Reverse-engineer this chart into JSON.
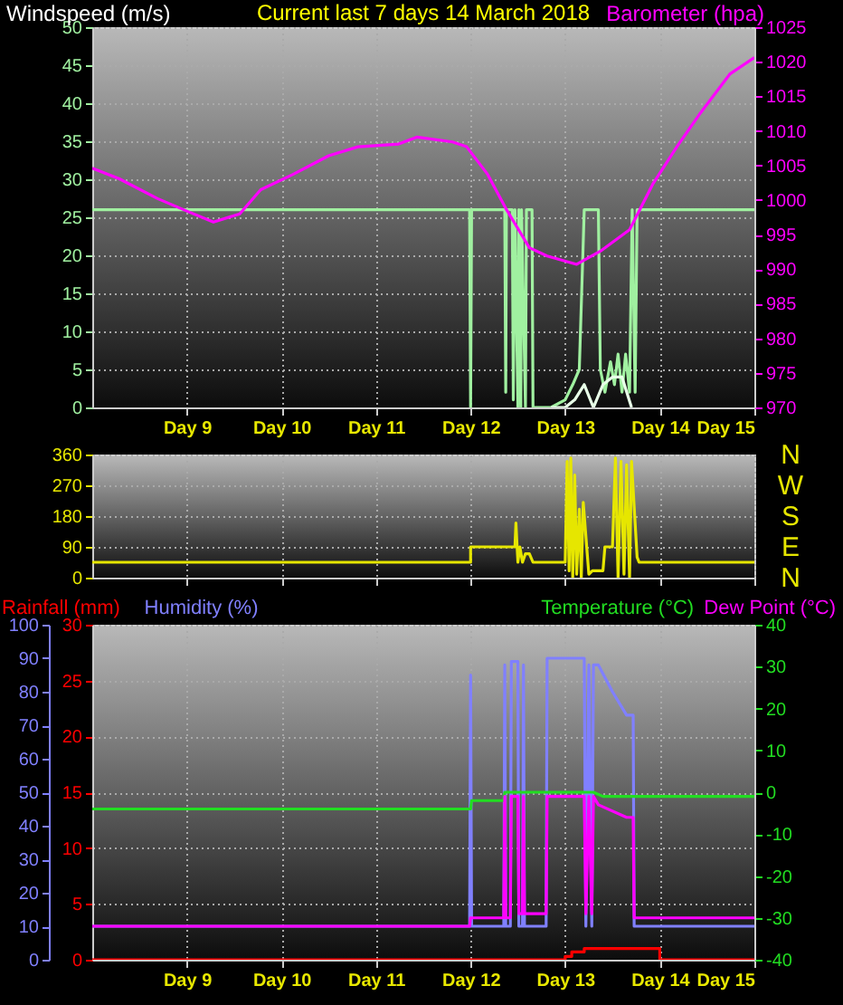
{
  "chart_data": [
    {
      "type": "line",
      "title": "Current last 7 days 14 March 2018",
      "ylabel": "Windspeed (m/s)",
      "y2label": "Barometer (hpa)",
      "xlim": [
        "2018-03-08T00:00",
        "2018-03-15T00:00"
      ],
      "xticks": [
        {
          "value": "2018-03-09",
          "label": "Day 9"
        },
        {
          "value": "2018-03-10",
          "label": "Day 10"
        },
        {
          "value": "2018-03-11",
          "label": "Day 11"
        },
        {
          "value": "2018-03-12",
          "label": "Day 12"
        },
        {
          "value": "2018-03-13",
          "label": "Day 13"
        },
        {
          "value": "2018-03-14",
          "label": "Day 14"
        },
        {
          "value": "2018-03-15",
          "label": "Day 15"
        }
      ],
      "ylim": [
        0,
        50
      ],
      "yticks": [
        0,
        5,
        10,
        15,
        20,
        25,
        30,
        35,
        40,
        45,
        50
      ],
      "y2lim": [
        970,
        1025
      ],
      "y2ticks": [
        970,
        975,
        980,
        985,
        990,
        995,
        1000,
        1005,
        1010,
        1015,
        1020,
        1025
      ],
      "grid": true,
      "series": [
        {
          "color": "#a0f0a0",
          "x": [
            "2018-03-08T00:00",
            "2018-03-11T23:45",
            "2018-03-12T00:00",
            "2018-03-12T00:15",
            "2018-03-12T08:40",
            "2018-03-12T08:55",
            "2018-03-12T09:05",
            "2018-03-12T10:35",
            "2018-03-12T10:50",
            "2018-03-12T11:15",
            "2018-03-12T12:00",
            "2018-03-12T12:15",
            "2018-03-12T12:45",
            "2018-03-12T12:55",
            "2018-03-12T13:55",
            "2018-03-12T14:10",
            "2018-03-12T15:35",
            "2018-03-12T15:50",
            "2018-03-12T20:25",
            "2018-03-13T00:00",
            "2018-03-13T01:55",
            "2018-03-13T03:35",
            "2018-03-13T04:50",
            "2018-03-13T08:25",
            "2018-03-13T08:55",
            "2018-03-13T10:05",
            "2018-03-13T11:30",
            "2018-03-13T12:30",
            "2018-03-13T13:25",
            "2018-03-13T14:25",
            "2018-03-13T15:20",
            "2018-03-13T16:20",
            "2018-03-13T17:00",
            "2018-03-13T17:45",
            "2018-03-13T18:15",
            "2018-03-15T00:00"
          ],
          "values": [
            26,
            26,
            0,
            26,
            26,
            2,
            26,
            26,
            1,
            26,
            0,
            26,
            0,
            26,
            0,
            26,
            26,
            0,
            0,
            1,
            3,
            5,
            26,
            26,
            5,
            2,
            6,
            3,
            7,
            2,
            7,
            2,
            26,
            2,
            26,
            26
          ]
        },
        {
          "color": "#e8ffe8",
          "x": [
            "2018-03-12T20:25",
            "2018-03-13T00:00",
            "2018-03-13T02:25",
            "2018-03-13T04:50",
            "2018-03-13T07:10",
            "2018-03-13T09:35",
            "2018-03-13T12:00",
            "2018-03-13T14:25",
            "2018-03-13T16:50"
          ],
          "values": [
            0,
            0,
            1,
            3,
            0,
            3,
            4,
            4,
            0
          ]
        },
        {
          "color": "#ff00ff",
          "axis": "y2",
          "x": [
            "2018-03-08T00:00",
            "2018-03-08T06:45",
            "2018-03-08T16:35",
            "2018-03-09T00:00",
            "2018-03-09T06:45",
            "2018-03-09T13:25",
            "2018-03-09T18:45",
            "2018-03-10T02:55",
            "2018-03-10T12:00",
            "2018-03-10T19:25",
            "2018-03-11T05:45",
            "2018-03-11T10:20",
            "2018-03-11T19:25",
            "2018-03-11T23:00",
            "2018-03-12T04:20",
            "2018-03-12T08:55",
            "2018-03-12T14:55",
            "2018-03-12T19:25",
            "2018-03-13T02:55",
            "2018-03-13T08:55",
            "2018-03-13T16:20",
            "2018-03-13T22:20",
            "2018-03-14T04:20",
            "2018-03-14T10:20",
            "2018-03-14T17:45",
            "2018-03-15T00:00"
          ],
          "values": [
            1004.6,
            1003.1,
            1000.2,
            998.4,
            996.8,
            998.0,
            1001.5,
            1003.7,
            1006.4,
            1007.7,
            1008.1,
            1009.1,
            1008.4,
            1007.7,
            1003.7,
            998.8,
            993.1,
            991.9,
            990.7,
            992.6,
            995.7,
            1002.4,
            1007.7,
            1012.6,
            1018.2,
            1020.6
          ]
        }
      ]
    },
    {
      "type": "line",
      "xlim": [
        "2018-03-08T00:00",
        "2018-03-15T00:00"
      ],
      "xticks": [
        "2018-03-09",
        "2018-03-10",
        "2018-03-11",
        "2018-03-12",
        "2018-03-13",
        "2018-03-14",
        "2018-03-15"
      ],
      "ylim": [
        0,
        360
      ],
      "yticks": [
        0,
        90,
        180,
        270,
        360
      ],
      "grid": true,
      "tick_labels": "y",
      "annotations": [
        "N",
        "W",
        "S",
        "E",
        "N"
      ],
      "series": [
        {
          "color": "#e6e600",
          "x": [
            "2018-03-08T00:00",
            "2018-03-12T00:00",
            "2018-03-12T00:00",
            "2018-03-12T11:15",
            "2018-03-12T11:30",
            "2018-03-12T12:00",
            "2018-03-12T12:30",
            "2018-03-12T13:10",
            "2018-03-12T13:55",
            "2018-03-12T14:55",
            "2018-03-12T15:50",
            "2018-03-12T15:50",
            "2018-03-13T00:00",
            "2018-03-13T00:30",
            "2018-03-13T01:00",
            "2018-03-13T01:25",
            "2018-03-13T01:55",
            "2018-03-13T02:25",
            "2018-03-13T02:55",
            "2018-03-13T03:35",
            "2018-03-13T04:05",
            "2018-03-13T04:35",
            "2018-03-13T06:00",
            "2018-03-13T06:55",
            "2018-03-13T09:35",
            "2018-03-13T10:05",
            "2018-03-13T12:00",
            "2018-03-13T12:45",
            "2018-03-13T13:25",
            "2018-03-13T14:10",
            "2018-03-13T14:55",
            "2018-03-13T15:35",
            "2018-03-13T16:20",
            "2018-03-13T16:50",
            "2018-03-13T18:15",
            "2018-03-13T18:45",
            "2018-03-15T00:00"
          ],
          "values": [
            45,
            45,
            90,
            90,
            160,
            45,
            90,
            45,
            70,
            70,
            45,
            45,
            45,
            340,
            20,
            350,
            0,
            300,
            10,
            200,
            0,
            220,
            10,
            20,
            20,
            90,
            90,
            350,
            0,
            340,
            10,
            330,
            0,
            340,
            60,
            45,
            45
          ]
        }
      ]
    },
    {
      "type": "line",
      "xlim": [
        "2018-03-08T00:00",
        "2018-03-15T00:00"
      ],
      "xticks": [
        {
          "value": "2018-03-09",
          "label": "Day 9"
        },
        {
          "value": "2018-03-10",
          "label": "Day 10"
        },
        {
          "value": "2018-03-11",
          "label": "Day 11"
        },
        {
          "value": "2018-03-12",
          "label": "Day 12"
        },
        {
          "value": "2018-03-13",
          "label": "Day 13"
        },
        {
          "value": "2018-03-14",
          "label": "Day 14"
        },
        {
          "value": "2018-03-15",
          "label": "Day 15"
        }
      ],
      "ylim": [
        0,
        30
      ],
      "yticks": [
        0,
        5,
        10,
        15,
        20,
        25,
        30
      ],
      "y3lim": [
        0,
        100
      ],
      "y3ticks": [
        0,
        10,
        20,
        30,
        40,
        50,
        60,
        70,
        80,
        90,
        100
      ],
      "y2lim": [
        -40,
        40
      ],
      "y2ticks": [
        -40,
        -30,
        -20,
        -10,
        0,
        10,
        20,
        30,
        40
      ],
      "grid": true,
      "series": [
        {
          "name": "Rainfall (mm)",
          "color": "#ff0000",
          "x": [
            "2018-03-08T00:00",
            "2018-03-13T00:00",
            "2018-03-13T00:00",
            "2018-03-13T01:40",
            "2018-03-13T01:40",
            "2018-03-13T04:50",
            "2018-03-13T04:50",
            "2018-03-14T00:00",
            "2018-03-14T00:00",
            "2018-03-15T00:00"
          ],
          "values": [
            0,
            0,
            0.3,
            0.3,
            0.7,
            0.7,
            1,
            1,
            0,
            0
          ]
        },
        {
          "name": "Humidity (%)",
          "color": "#8080ff",
          "axis": "y3",
          "x": [
            "2018-03-08T00:00",
            "2018-03-11T23:45",
            "2018-03-12T00:00",
            "2018-03-12T00:15",
            "2018-03-12T08:25",
            "2018-03-12T08:40",
            "2018-03-12T08:55",
            "2018-03-12T10:05",
            "2018-03-12T10:20",
            "2018-03-12T12:00",
            "2018-03-12T12:15",
            "2018-03-12T13:10",
            "2018-03-12T13:25",
            "2018-03-12T13:40",
            "2018-03-12T19:10",
            "2018-03-12T19:25",
            "2018-03-13T04:50",
            "2018-03-13T05:15",
            "2018-03-13T06:00",
            "2018-03-13T06:45",
            "2018-03-13T07:10",
            "2018-03-13T08:25",
            "2018-03-13T12:00",
            "2018-03-13T15:35",
            "2018-03-13T17:15",
            "2018-03-13T17:30",
            "2018-03-15T00:00"
          ],
          "values": [
            10,
            10,
            85,
            10,
            10,
            88,
            10,
            10,
            89,
            89,
            10,
            10,
            88,
            10,
            10,
            90,
            90,
            10,
            88,
            10,
            88,
            88,
            80,
            73,
            73,
            10,
            10
          ]
        },
        {
          "name": "Temperature (°C)",
          "color": "#22dd22",
          "axis": "y2",
          "x": [
            "2018-03-08T00:00",
            "2018-03-12T00:00",
            "2018-03-12T00:15",
            "2018-03-12T08:25",
            "2018-03-12T08:40",
            "2018-03-12T12:00",
            "2018-03-13T07:10",
            "2018-03-13T09:35",
            "2018-03-15T00:00"
          ],
          "values": [
            -4,
            -4,
            -2,
            -2,
            0,
            0,
            0,
            -1,
            -1
          ]
        },
        {
          "name": "Dew Point (°C)",
          "color": "#ff00ff",
          "axis": "y2",
          "x": [
            "2018-03-08T00:00",
            "2018-03-11T23:45",
            "2018-03-12T00:00",
            "2018-03-12T08:25",
            "2018-03-12T08:40",
            "2018-03-12T08:55",
            "2018-03-12T10:05",
            "2018-03-12T10:20",
            "2018-03-12T12:00",
            "2018-03-12T12:15",
            "2018-03-12T13:10",
            "2018-03-12T13:25",
            "2018-03-12T13:40",
            "2018-03-12T19:10",
            "2018-03-12T19:25",
            "2018-03-13T04:50",
            "2018-03-13T05:15",
            "2018-03-13T06:00",
            "2018-03-13T06:45",
            "2018-03-13T07:10",
            "2018-03-13T08:25",
            "2018-03-13T15:35",
            "2018-03-13T17:15",
            "2018-03-13T17:30",
            "2018-03-15T00:00"
          ],
          "values": [
            -32,
            -32,
            -30,
            -30,
            -1,
            -30,
            -30,
            -1,
            -1,
            -29,
            -29,
            -1,
            -29,
            -29,
            -1,
            -1,
            -29,
            -1,
            -29,
            -1,
            -3,
            -6,
            -6,
            -30,
            -30
          ]
        }
      ]
    }
  ]
}
